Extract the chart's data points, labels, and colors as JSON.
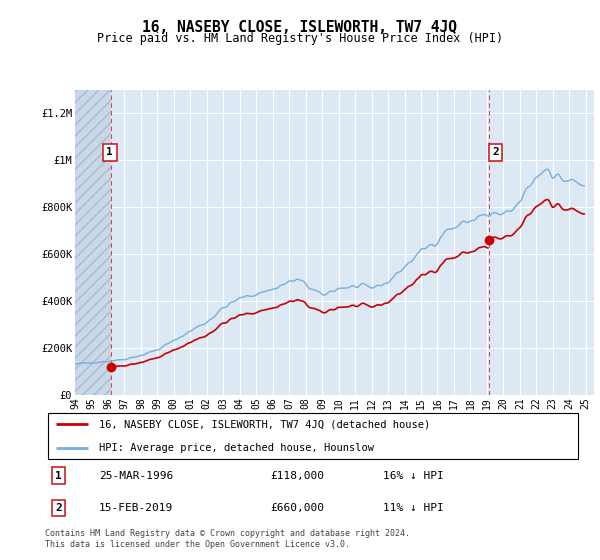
{
  "title": "16, NASEBY CLOSE, ISLEWORTH, TW7 4JQ",
  "subtitle": "Price paid vs. HM Land Registry's House Price Index (HPI)",
  "legend_label_red": "16, NASEBY CLOSE, ISLEWORTH, TW7 4JQ (detached house)",
  "legend_label_blue": "HPI: Average price, detached house, Hounslow",
  "annotation1_date": "25-MAR-1996",
  "annotation1_price": "£118,000",
  "annotation1_hpi": "16% ↓ HPI",
  "annotation1_year": 1996.21,
  "annotation1_value": 118000,
  "annotation2_date": "15-FEB-2019",
  "annotation2_price": "£660,000",
  "annotation2_hpi": "11% ↓ HPI",
  "annotation2_year": 2019.12,
  "annotation2_value": 660000,
  "footer": "Contains HM Land Registry data © Crown copyright and database right 2024.\nThis data is licensed under the Open Government Licence v3.0.",
  "ylim": [
    0,
    1300000
  ],
  "xlim_start": 1994.0,
  "xlim_end": 2025.5,
  "yticks": [
    0,
    200000,
    400000,
    600000,
    800000,
    1000000,
    1200000
  ],
  "ytick_labels": [
    "£0",
    "£200K",
    "£400K",
    "£600K",
    "£800K",
    "£1M",
    "£1.2M"
  ],
  "red_line_color": "#cc0000",
  "blue_line_color": "#7aaddb",
  "background_plot_color": "#dce9f5",
  "grid_color": "#ffffff",
  "hatch_color": "#c8d8e8"
}
